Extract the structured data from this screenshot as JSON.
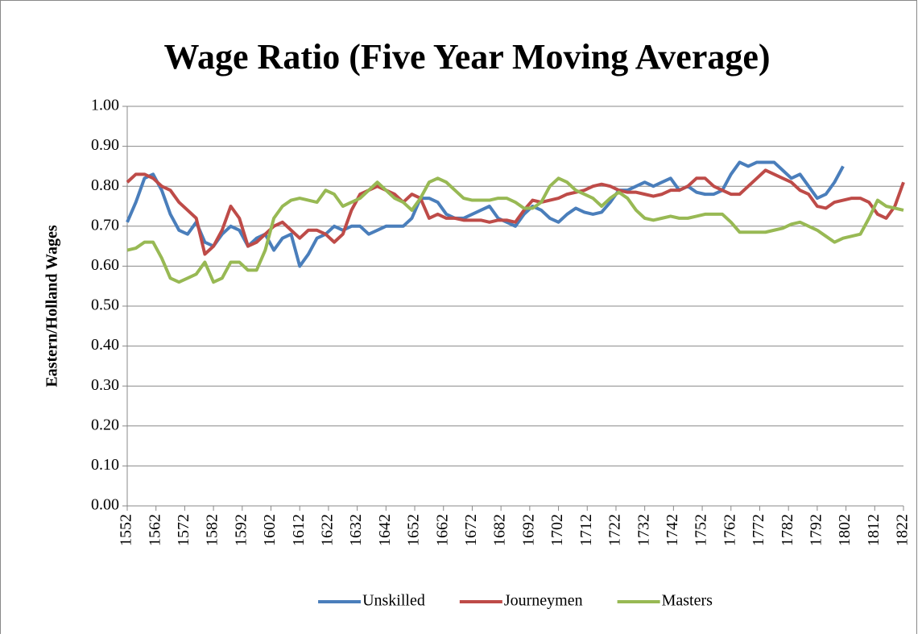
{
  "chart_data": {
    "type": "line",
    "title": "Wage Ratio (Five Year Moving Average)",
    "y_label": "Eastern/Holland Wages",
    "x": [
      1552,
      1555,
      1558,
      1561,
      1564,
      1567,
      1570,
      1573,
      1576,
      1579,
      1582,
      1585,
      1588,
      1591,
      1594,
      1597,
      1600,
      1603,
      1606,
      1609,
      1612,
      1615,
      1618,
      1621,
      1624,
      1627,
      1630,
      1633,
      1636,
      1639,
      1642,
      1645,
      1648,
      1651,
      1654,
      1657,
      1660,
      1663,
      1666,
      1669,
      1672,
      1675,
      1678,
      1681,
      1684,
      1687,
      1690,
      1693,
      1696,
      1699,
      1702,
      1705,
      1708,
      1711,
      1714,
      1717,
      1720,
      1723,
      1726,
      1729,
      1732,
      1735,
      1738,
      1741,
      1744,
      1747,
      1750,
      1753,
      1756,
      1759,
      1762,
      1765,
      1768,
      1771,
      1774,
      1777,
      1780,
      1783,
      1786,
      1789,
      1792,
      1795,
      1798,
      1801,
      1804,
      1807,
      1810,
      1813,
      1816,
      1819,
      1822
    ],
    "series": [
      {
        "name": "Unskilled",
        "color": "#4a7ebb",
        "values": [
          0.71,
          0.76,
          0.82,
          0.83,
          0.79,
          0.73,
          0.69,
          0.68,
          0.71,
          0.66,
          0.65,
          0.68,
          0.7,
          0.69,
          0.65,
          0.67,
          0.68,
          0.64,
          0.67,
          0.68,
          0.6,
          0.63,
          0.67,
          0.68,
          0.7,
          0.69,
          0.7,
          0.7,
          0.68,
          0.69,
          0.7,
          0.7,
          0.7,
          0.72,
          0.77,
          0.77,
          0.76,
          0.73,
          0.72,
          0.72,
          0.73,
          0.74,
          0.75,
          0.72,
          0.71,
          0.7,
          0.73,
          0.75,
          0.74,
          0.72,
          0.71,
          0.73,
          0.745,
          0.735,
          0.73,
          0.735,
          0.76,
          0.79,
          0.79,
          0.8,
          0.81,
          0.8,
          0.81,
          0.82,
          0.79,
          0.8,
          0.785,
          0.78,
          0.78,
          0.79,
          0.83,
          0.86,
          0.85,
          0.86,
          0.86,
          0.86,
          0.84,
          0.82,
          0.83,
          0.8,
          0.77,
          0.78,
          0.81,
          0.85,
          null,
          null,
          null,
          null,
          null,
          null,
          null
        ]
      },
      {
        "name": "Journeymen",
        "color": "#be4b48",
        "values": [
          0.81,
          0.83,
          0.83,
          0.82,
          0.8,
          0.79,
          0.76,
          0.74,
          0.72,
          0.63,
          0.65,
          0.69,
          0.75,
          0.72,
          0.65,
          0.66,
          0.68,
          0.7,
          0.71,
          0.69,
          0.67,
          0.69,
          0.69,
          0.68,
          0.66,
          0.68,
          0.74,
          0.78,
          0.79,
          0.8,
          0.79,
          0.78,
          0.76,
          0.78,
          0.77,
          0.72,
          0.73,
          0.72,
          0.72,
          0.715,
          0.715,
          0.715,
          0.71,
          0.715,
          0.715,
          0.71,
          0.74,
          0.765,
          0.76,
          0.765,
          0.77,
          0.78,
          0.785,
          0.79,
          0.8,
          0.805,
          0.8,
          0.79,
          0.785,
          0.785,
          0.78,
          0.775,
          0.78,
          0.79,
          0.79,
          0.8,
          0.82,
          0.82,
          0.8,
          0.79,
          0.78,
          0.78,
          0.8,
          0.82,
          0.84,
          0.83,
          0.82,
          0.81,
          0.79,
          0.78,
          0.75,
          0.745,
          0.76,
          0.765,
          0.77,
          0.77,
          0.76,
          0.73,
          0.72,
          0.75,
          0.81
        ]
      },
      {
        "name": "Masters",
        "color": "#98b954",
        "values": [
          0.64,
          0.645,
          0.66,
          0.66,
          0.62,
          0.57,
          0.56,
          0.57,
          0.58,
          0.61,
          0.56,
          0.57,
          0.61,
          0.61,
          0.59,
          0.59,
          0.64,
          0.72,
          0.75,
          0.765,
          0.77,
          0.765,
          0.76,
          0.79,
          0.78,
          0.75,
          0.76,
          0.77,
          0.79,
          0.81,
          0.79,
          0.77,
          0.76,
          0.74,
          0.77,
          0.81,
          0.82,
          0.81,
          0.79,
          0.77,
          0.765,
          0.765,
          0.765,
          0.77,
          0.77,
          0.76,
          0.745,
          0.745,
          0.76,
          0.8,
          0.82,
          0.81,
          0.79,
          0.78,
          0.77,
          0.75,
          0.77,
          0.785,
          0.77,
          0.74,
          0.72,
          0.715,
          0.72,
          0.725,
          0.72,
          0.72,
          0.725,
          0.73,
          0.73,
          0.73,
          0.71,
          0.685,
          0.685,
          0.685,
          0.685,
          0.69,
          0.695,
          0.705,
          0.71,
          0.7,
          0.69,
          0.675,
          0.66,
          0.67,
          0.675,
          0.68,
          0.72,
          0.765,
          0.75,
          0.745,
          0.74
        ]
      }
    ],
    "xlim": [
      1552,
      1822
    ],
    "xticks": [
      1552,
      1562,
      1572,
      1582,
      1592,
      1602,
      1612,
      1622,
      1632,
      1642,
      1652,
      1662,
      1672,
      1682,
      1692,
      1702,
      1712,
      1722,
      1732,
      1742,
      1752,
      1762,
      1772,
      1782,
      1792,
      1802,
      1812,
      1822
    ],
    "ylim": [
      0,
      1
    ],
    "yticks": [
      {
        "value": 0,
        "label": "0.00"
      },
      {
        "value": 0.1,
        "label": "0.10"
      },
      {
        "value": 0.2,
        "label": "0.20"
      },
      {
        "value": 0.3,
        "label": "0.30"
      },
      {
        "value": 0.4,
        "label": "0.40"
      },
      {
        "value": 0.5,
        "label": "0.50"
      },
      {
        "value": 0.6,
        "label": "0.60"
      },
      {
        "value": 0.7,
        "label": "0.70"
      },
      {
        "value": 0.8,
        "label": "0.80"
      },
      {
        "value": 0.9,
        "label": "0.90"
      },
      {
        "value": 1,
        "label": "1.00"
      }
    ],
    "grid": true,
    "legend": "bottom"
  }
}
